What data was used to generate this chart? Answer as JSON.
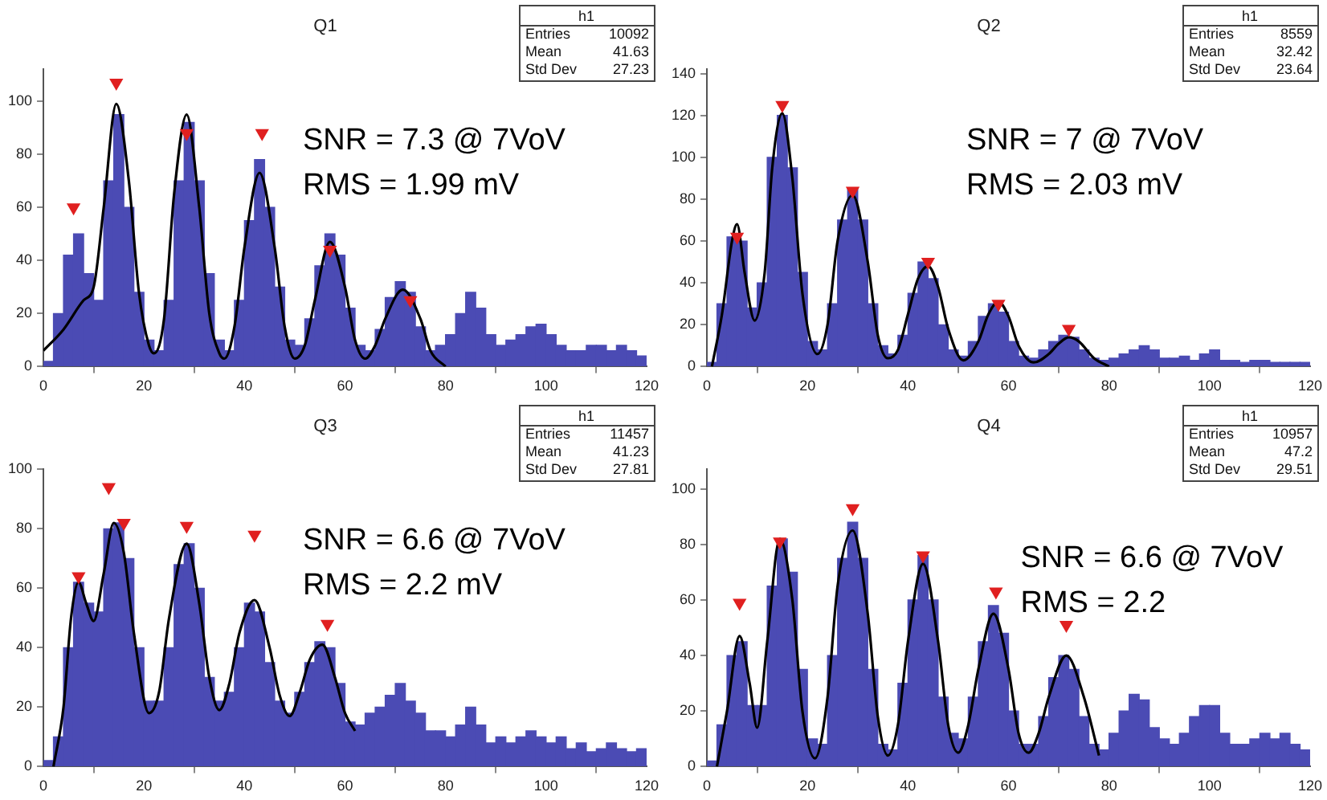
{
  "chart_data": [
    {
      "type": "histogram",
      "title": "Q1",
      "bins": [
        0,
        2,
        4,
        6,
        8,
        10,
        12,
        14,
        16,
        18,
        20,
        22,
        24,
        26,
        28,
        30,
        32,
        34,
        36,
        38,
        40,
        42,
        44,
        46,
        48,
        50,
        52,
        54,
        56,
        58,
        60,
        62,
        64,
        66,
        68,
        70,
        72,
        74,
        76,
        78,
        80,
        82,
        84,
        86,
        88,
        90,
        92,
        94,
        96,
        98,
        100,
        102,
        104,
        106,
        108,
        110,
        112,
        114,
        116,
        118,
        120
      ],
      "color": "#4b4bb4",
      "values": [
        2,
        20,
        42,
        50,
        35,
        25,
        70,
        95,
        60,
        28,
        10,
        6,
        25,
        70,
        92,
        70,
        35,
        10,
        6,
        25,
        55,
        78,
        60,
        30,
        10,
        8,
        18,
        38,
        50,
        42,
        22,
        8,
        6,
        14,
        26,
        32,
        28,
        15,
        6,
        8,
        12,
        20,
        28,
        22,
        12,
        8,
        10,
        12,
        15,
        16,
        12,
        8,
        6,
        6,
        8,
        8,
        6,
        8,
        6,
        4
      ],
      "series": [
        {
          "type": "line",
          "color": "#000000",
          "x": [
            0,
            4,
            8,
            10,
            12,
            14.5,
            17,
            19,
            21,
            22,
            24,
            26,
            28.5,
            31,
            33,
            35,
            36,
            38,
            40,
            43,
            46,
            48,
            50,
            52,
            54,
            57,
            60,
            62,
            64,
            66,
            68,
            71.5,
            75,
            77,
            80
          ],
          "values": [
            6,
            14,
            25,
            30,
            60,
            99,
            70,
            28,
            8,
            5,
            18,
            65,
            95,
            60,
            20,
            5,
            3,
            15,
            45,
            73,
            45,
            15,
            3,
            8,
            25,
            47,
            30,
            10,
            3,
            8,
            18,
            29,
            18,
            6,
            0
          ]
        },
        {
          "type": "scatter",
          "color": "#e02020",
          "marker": "triangle",
          "x": [
            6,
            14.5,
            28.5,
            43.5,
            57,
            73
          ],
          "values": [
            60,
            107,
            88,
            88,
            44,
            25
          ]
        }
      ],
      "xlim": [
        0,
        120
      ],
      "xticks": [
        0,
        20,
        40,
        60,
        80,
        100,
        120
      ],
      "ylim": [
        0,
        112
      ],
      "yticks": [
        0,
        20,
        40,
        60,
        80,
        100
      ],
      "grid": false,
      "legend": false,
      "annotations": [
        "h1",
        "Entries 10092",
        "Mean 41.63",
        "Std Dev 27.23",
        "SNR = 7.3 @ 7VoV",
        "RMS = 1.99 mV"
      ]
    },
    {
      "type": "histogram",
      "title": "Q2",
      "bins": [
        0,
        2,
        4,
        6,
        8,
        10,
        12,
        14,
        16,
        18,
        20,
        22,
        24,
        26,
        28,
        30,
        32,
        34,
        36,
        38,
        40,
        42,
        44,
        46,
        48,
        50,
        52,
        54,
        56,
        58,
        60,
        62,
        64,
        66,
        68,
        70,
        72,
        74,
        76,
        78,
        80,
        82,
        84,
        86,
        88,
        90,
        92,
        94,
        96,
        98,
        100,
        102,
        104,
        106,
        108,
        110,
        112,
        114,
        116,
        118,
        120
      ],
      "color": "#4b4bb4",
      "values": [
        2,
        30,
        62,
        60,
        28,
        40,
        100,
        120,
        95,
        45,
        12,
        8,
        30,
        70,
        85,
        70,
        30,
        10,
        6,
        15,
        35,
        50,
        42,
        20,
        8,
        5,
        12,
        24,
        30,
        26,
        12,
        5,
        4,
        8,
        12,
        15,
        14,
        8,
        4,
        3,
        4,
        6,
        8,
        10,
        8,
        4,
        4,
        5,
        3,
        6,
        8,
        3,
        3,
        2,
        3,
        3,
        2,
        2,
        2,
        2
      ],
      "series": [
        {
          "type": "line",
          "color": "#000000",
          "x": [
            1,
            3,
            5,
            6,
            7.5,
            9.5,
            11.5,
            13,
            15,
            17,
            19,
            22,
            24,
            26,
            29,
            32,
            34,
            36,
            38,
            40,
            42,
            44,
            46,
            48,
            51,
            54,
            56,
            58,
            60,
            62,
            65,
            68,
            70,
            72,
            74,
            77,
            80
          ],
          "values": [
            0,
            25,
            60,
            68,
            45,
            22,
            45,
            95,
            121,
            90,
            35,
            6,
            20,
            60,
            82,
            50,
            15,
            4,
            8,
            25,
            42,
            48,
            38,
            18,
            3,
            12,
            25,
            31,
            24,
            10,
            2,
            6,
            11,
            14,
            12,
            4,
            0
          ]
        },
        {
          "type": "scatter",
          "color": "#e02020",
          "marker": "triangle",
          "x": [
            6,
            15,
            29,
            44,
            58,
            72
          ],
          "values": [
            62,
            125,
            84,
            50,
            30,
            18
          ]
        }
      ],
      "xlim": [
        0,
        120
      ],
      "xticks": [
        0,
        20,
        40,
        60,
        80,
        100,
        120
      ],
      "ylim": [
        0,
        142
      ],
      "yticks": [
        0,
        20,
        40,
        60,
        80,
        100,
        120,
        140
      ],
      "grid": false,
      "legend": false,
      "annotations": [
        "h1",
        "Entries 8559",
        "Mean 32.42",
        "Std Dev 23.64",
        "SNR = 7 @ 7VoV",
        "RMS = 2.03 mV"
      ]
    },
    {
      "type": "histogram",
      "title": "Q3",
      "bins": [
        0,
        2,
        4,
        6,
        8,
        10,
        12,
        14,
        16,
        18,
        20,
        22,
        24,
        26,
        28,
        30,
        32,
        34,
        36,
        38,
        40,
        42,
        44,
        46,
        48,
        50,
        52,
        54,
        56,
        58,
        60,
        62,
        64,
        66,
        68,
        70,
        72,
        74,
        76,
        78,
        80,
        82,
        84,
        86,
        88,
        90,
        92,
        94,
        96,
        98,
        100,
        102,
        104,
        106,
        108,
        110,
        112,
        114,
        116,
        118,
        120
      ],
      "color": "#4b4bb4",
      "values": [
        2,
        10,
        40,
        62,
        55,
        52,
        80,
        82,
        70,
        40,
        22,
        22,
        40,
        68,
        75,
        60,
        30,
        22,
        25,
        40,
        55,
        52,
        35,
        22,
        18,
        25,
        35,
        42,
        40,
        28,
        15,
        14,
        18,
        20,
        24,
        28,
        22,
        18,
        12,
        12,
        10,
        14,
        20,
        14,
        8,
        10,
        8,
        10,
        12,
        10,
        8,
        10,
        6,
        8,
        5,
        6,
        8,
        6,
        5,
        6
      ],
      "series": [
        {
          "type": "line",
          "color": "#000000",
          "x": [
            2,
            4,
            5.5,
            7,
            8.5,
            10,
            12,
            14,
            16,
            18,
            21,
            23,
            25,
            28.5,
            31,
            33,
            35,
            37,
            39,
            42,
            45,
            47,
            49,
            51,
            53,
            55.5,
            58,
            60,
            62
          ],
          "values": [
            0,
            20,
            50,
            62,
            55,
            49,
            65,
            82,
            72,
            45,
            18,
            25,
            50,
            75,
            55,
            30,
            19,
            28,
            45,
            56,
            40,
            24,
            17,
            25,
            36,
            41,
            30,
            18,
            12
          ]
        },
        {
          "type": "scatter",
          "color": "#e02020",
          "marker": "triangle",
          "x": [
            7,
            13,
            16,
            28.5,
            42,
            56.5
          ],
          "values": [
            64,
            94,
            82,
            81,
            78,
            48
          ]
        }
      ],
      "xlim": [
        0,
        120
      ],
      "xticks": [
        0,
        20,
        40,
        60,
        80,
        100,
        120
      ],
      "ylim": [
        0,
        100
      ],
      "yticks": [
        0,
        20,
        40,
        60,
        80,
        100
      ],
      "grid": false,
      "legend": false,
      "annotations": [
        "h1",
        "Entries 11457",
        "Mean 41.23",
        "Std Dev 27.81",
        "SNR = 6.6 @ 7VoV",
        "RMS = 2.2 mV"
      ]
    },
    {
      "type": "histogram",
      "title": "Q4",
      "bins": [
        0,
        2,
        4,
        6,
        8,
        10,
        12,
        14,
        16,
        18,
        20,
        22,
        24,
        26,
        28,
        30,
        32,
        34,
        36,
        38,
        40,
        42,
        44,
        46,
        48,
        50,
        52,
        54,
        56,
        58,
        60,
        62,
        64,
        66,
        68,
        70,
        72,
        74,
        76,
        78,
        80,
        82,
        84,
        86,
        88,
        90,
        92,
        94,
        96,
        98,
        100,
        102,
        104,
        106,
        108,
        110,
        112,
        114,
        116,
        118,
        120
      ],
      "color": "#4b4bb4",
      "values": [
        2,
        15,
        40,
        45,
        22,
        22,
        65,
        82,
        70,
        35,
        10,
        8,
        40,
        75,
        88,
        75,
        35,
        8,
        6,
        30,
        60,
        76,
        60,
        25,
        12,
        10,
        25,
        45,
        58,
        48,
        20,
        8,
        8,
        18,
        32,
        40,
        35,
        18,
        8,
        6,
        12,
        20,
        26,
        24,
        14,
        10,
        8,
        12,
        18,
        22,
        22,
        12,
        8,
        8,
        10,
        12,
        10,
        12,
        8,
        6
      ],
      "series": [
        {
          "type": "line",
          "color": "#000000",
          "x": [
            2,
            4,
            6.5,
            8.5,
            10,
            12,
            14.5,
            17,
            19,
            21.5,
            24,
            26,
            29,
            32,
            34,
            36,
            38,
            40,
            43,
            46,
            48,
            50,
            52,
            54,
            57,
            60,
            62,
            64,
            66,
            68,
            71.5,
            75,
            78
          ],
          "values": [
            0,
            20,
            47,
            30,
            14,
            45,
            82,
            60,
            20,
            3,
            25,
            65,
            85,
            55,
            18,
            4,
            15,
            45,
            73,
            45,
            15,
            5,
            15,
            35,
            55,
            35,
            12,
            5,
            12,
            25,
            40,
            25,
            4
          ]
        },
        {
          "type": "scatter",
          "color": "#e02020",
          "marker": "triangle",
          "x": [
            6.5,
            14.5,
            29,
            43,
            57.5,
            71.5
          ],
          "values": [
            59,
            81,
            93,
            76,
            63,
            51
          ]
        }
      ],
      "xlim": [
        0,
        120
      ],
      "xticks": [
        0,
        20,
        40,
        60,
        80,
        100,
        120
      ],
      "ylim": [
        0,
        107
      ],
      "yticks": [
        0,
        20,
        40,
        60,
        80,
        100
      ],
      "grid": false,
      "legend": false,
      "annotations": [
        "h1",
        "Entries 10957",
        "Mean 47.2",
        "Std Dev 29.51",
        "SNR = 6.6 @ 7VoV",
        "RMS = 2.2"
      ]
    }
  ]
}
